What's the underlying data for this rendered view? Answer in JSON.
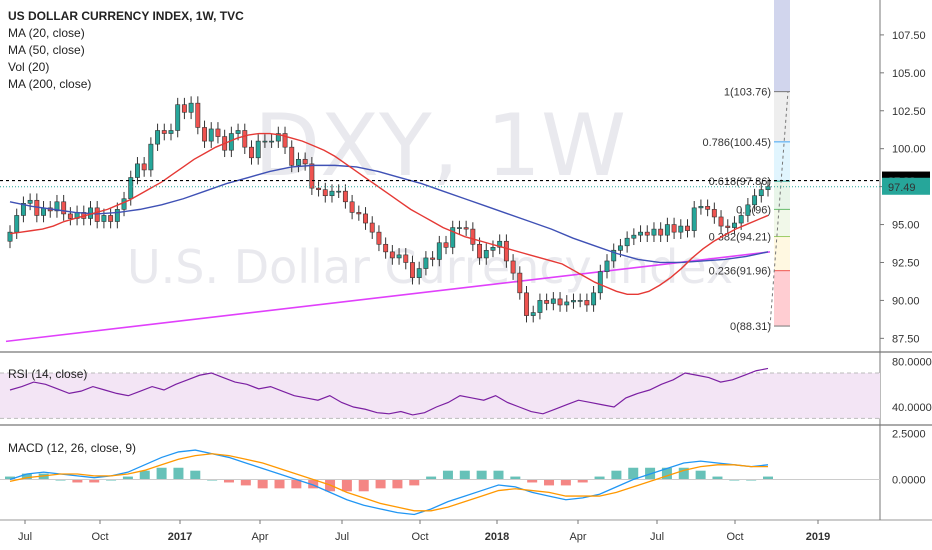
{
  "header": {
    "title": "US DOLLAR CURRENCY INDEX, 1W, TVC",
    "indicators": [
      "MA (20, close)",
      "MA (50, close)",
      "Vol (20)",
      "MA (200, close)"
    ]
  },
  "watermark": {
    "big": "DXY, 1W",
    "sub": "U.S. Dollar Currency Index"
  },
  "rsi_panel": {
    "label": "RSI (14, close)"
  },
  "macd_panel": {
    "label": "MACD (12, 26, close, 9)"
  },
  "price_tags": {
    "hline": "97.90",
    "last": "97.49"
  },
  "colors": {
    "up": "#26a69a",
    "down": "#ef5350",
    "ma20": "#e53935",
    "ma50": "#3f51b5",
    "ma200": "#e040fb",
    "rsi": "#7b1fa2",
    "macd": "#2196f3",
    "signal": "#ff9800",
    "hline": "#000000",
    "last_tag": "#26a69a"
  },
  "chart_data": [
    {
      "type": "candlestick",
      "title": "US DOLLAR CURRENCY INDEX, 1W, TVC",
      "x_ticks": [
        "Jul",
        "Oct",
        "2017",
        "Apr",
        "Jul",
        "Oct",
        "2018",
        "Apr",
        "Jul",
        "Oct",
        "2019"
      ],
      "y_ticks": [
        "87.50",
        "90.00",
        "92.50",
        "95.00",
        "97.50",
        "100.00",
        "102.50",
        "105.00",
        "107.50"
      ],
      "ylim": [
        86.6,
        109.8
      ],
      "hline": 97.9,
      "last": 97.49,
      "fib": [
        {
          "level": "1",
          "price": 103.76,
          "label": "1(103.76)"
        },
        {
          "level": "0.786",
          "price": 100.45,
          "label": "0.786(100.45)"
        },
        {
          "level": "0.618",
          "price": 97.86,
          "label": "0.618(97.86)"
        },
        {
          "level": "0.5",
          "price": 96.0,
          "label": "0.5(96)"
        },
        {
          "level": "0.382",
          "price": 94.21,
          "label": "0.382(94.21)"
        },
        {
          "level": "0.236",
          "price": 91.96,
          "label": "0.236(91.96)"
        },
        {
          "level": "0",
          "price": 88.31,
          "label": "0(88.31)"
        }
      ],
      "close": [
        94.5,
        95.6,
        96.4,
        96.6,
        95.6,
        96.1,
        95.9,
        96.5,
        95.7,
        95.4,
        95.8,
        95.4,
        96.1,
        95.2,
        95.6,
        95.2,
        96.0,
        96.7,
        98.1,
        99.0,
        98.6,
        100.3,
        101.2,
        101.0,
        101.2,
        102.9,
        102.4,
        103.0,
        101.4,
        100.5,
        101.3,
        100.8,
        99.9,
        101.0,
        101.2,
        100.1,
        99.4,
        100.5,
        100.5,
        100.5,
        101.0,
        100.1,
        98.9,
        99.3,
        99.0,
        97.4,
        97.3,
        96.9,
        97.2,
        97.2,
        96.5,
        95.8,
        95.7,
        95.1,
        94.5,
        93.7,
        93.2,
        92.8,
        93.0,
        92.5,
        91.5,
        92.1,
        92.8,
        92.7,
        93.8,
        93.5,
        94.8,
        94.8,
        94.7,
        93.7,
        92.8,
        93.3,
        93.5,
        93.9,
        92.6,
        91.8,
        90.5,
        89.0,
        89.2,
        90.0,
        89.8,
        90.1,
        89.7,
        89.9,
        90.0,
        90.0,
        89.7,
        90.5,
        91.9,
        92.6,
        93.3,
        93.6,
        94.1,
        94.3,
        94.5,
        94.3,
        94.7,
        94.3,
        95.0,
        94.5,
        94.9,
        94.6,
        96.1,
        96.2,
        96.0,
        95.5,
        94.9,
        94.8,
        95.1,
        95.6,
        96.3,
        96.9,
        97.3,
        97.5
      ],
      "ma20_approx": [
        94.4,
        94.5,
        94.6,
        94.7,
        94.9,
        95.2,
        95.4,
        95.6,
        95.8,
        96.0,
        96.3,
        96.6,
        97.0,
        97.4,
        97.8,
        98.3,
        98.8,
        99.3,
        99.7,
        100.1,
        100.4,
        100.7,
        100.9,
        101.0,
        101.0,
        100.9,
        100.7,
        100.5,
        100.2,
        99.9,
        99.5,
        99.0,
        98.5,
        98.0,
        97.5,
        97.0,
        96.5,
        96.0,
        95.6,
        95.2,
        94.8,
        94.5,
        94.2,
        94.0,
        93.8,
        93.6,
        93.4,
        93.2,
        93.0,
        92.8,
        92.6,
        92.4,
        92.0,
        91.6,
        91.2,
        90.9,
        90.6,
        90.4,
        90.4,
        90.6,
        91.0,
        91.5,
        92.1,
        92.8,
        93.4,
        93.9,
        94.3,
        94.7,
        95.0,
        95.3,
        95.6
      ],
      "ma50_approx": [
        96.5,
        96.2,
        96.0,
        95.8,
        95.7,
        95.8,
        96.0,
        96.3,
        96.7,
        97.2,
        97.7,
        98.1,
        98.5,
        98.8,
        98.9,
        98.9,
        98.8,
        98.5,
        98.1,
        97.7,
        97.2,
        96.7,
        96.2,
        95.7,
        95.2,
        94.7,
        94.1,
        93.6,
        93.1,
        92.7,
        92.5,
        92.5,
        92.6,
        92.7,
        92.9,
        93.2
      ],
      "ma200_approx": [
        87.3,
        93.2
      ]
    },
    {
      "type": "line",
      "title": "RSI (14, close)",
      "y_ticks": [
        "40.0000",
        "80.0000"
      ],
      "series": [
        {
          "values": [
            55,
            58,
            62,
            60,
            56,
            52,
            54,
            58,
            55,
            52,
            50,
            54,
            58,
            55,
            60,
            64,
            68,
            70,
            66,
            62,
            60,
            56,
            58,
            54,
            50,
            48,
            46,
            50,
            44,
            40,
            38,
            35,
            34,
            36,
            33,
            35,
            40,
            44,
            50,
            48,
            46,
            50,
            44,
            40,
            36,
            34,
            38,
            42,
            46,
            44,
            42,
            40,
            48,
            52,
            55,
            60,
            64,
            70,
            68,
            66,
            62,
            64,
            68,
            72,
            74
          ]
        }
      ]
    },
    {
      "type": "line",
      "title": "MACD (12, 26, close, 9)",
      "y_ticks": [
        "0.0000",
        "2.5000"
      ],
      "series": [
        {
          "values": [
            0.0,
            0.3,
            0.4,
            0.3,
            0.2,
            0.1,
            0.2,
            0.4,
            0.8,
            1.2,
            1.5,
            1.6,
            1.4,
            1.2,
            0.9,
            0.6,
            0.3,
            0.0,
            -0.3,
            -0.7,
            -1.1,
            -1.4,
            -1.6,
            -1.8,
            -1.9,
            -1.6,
            -1.2,
            -0.9,
            -0.6,
            -0.3,
            -0.4,
            -0.7,
            -0.9,
            -1.1,
            -1.0,
            -0.8,
            -0.4,
            0.0,
            0.3,
            0.6,
            0.9,
            1.0,
            0.9,
            0.8,
            0.7,
            0.8
          ]
        },
        {
          "values": [
            -0.1,
            0.1,
            0.2,
            0.3,
            0.3,
            0.2,
            0.2,
            0.3,
            0.5,
            0.8,
            1.1,
            1.3,
            1.4,
            1.3,
            1.1,
            0.9,
            0.6,
            0.3,
            0.0,
            -0.3,
            -0.7,
            -1.0,
            -1.3,
            -1.5,
            -1.7,
            -1.7,
            -1.5,
            -1.2,
            -0.9,
            -0.6,
            -0.5,
            -0.6,
            -0.7,
            -0.9,
            -0.9,
            -0.9,
            -0.7,
            -0.4,
            -0.1,
            0.2,
            0.5,
            0.7,
            0.8,
            0.8,
            0.7,
            0.7
          ]
        }
      ]
    }
  ]
}
